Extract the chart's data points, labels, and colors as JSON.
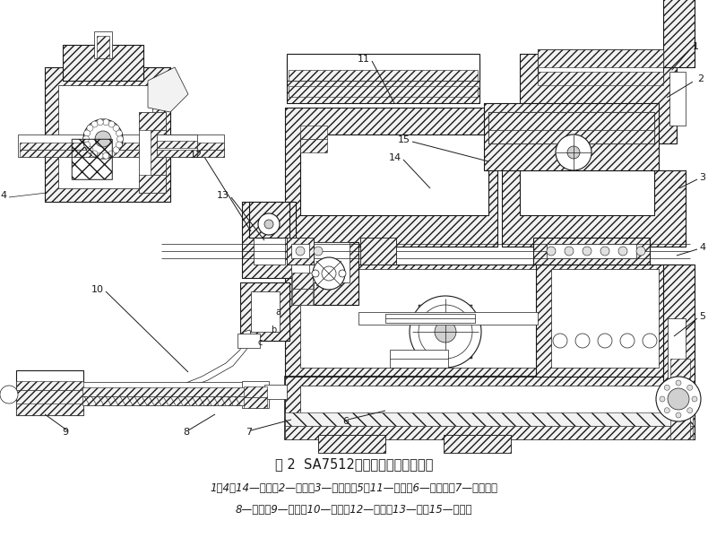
{
  "title_main": "图 2  SA7512万能螺纹磨床分度机构",
  "caption_line1": "1、4、14—齿轮；2—拨盘；3—刻度盘；5、11—拨叉；6—定位杆；7—定位销；",
  "caption_line2": "8—弹簧；9—捏手；10—杠杆；12—手柄；13—轴；15—离合器",
  "bg_color": "#ffffff",
  "line_color": "#1a1a1a",
  "fig_width": 7.9,
  "fig_height": 6.0,
  "dpi": 100,
  "title_fontsize": 10.5,
  "caption_fontsize": 8.5,
  "label_fontsize": 8,
  "lw_thin": 0.5,
  "lw_med": 0.8,
  "lw_thick": 1.2
}
